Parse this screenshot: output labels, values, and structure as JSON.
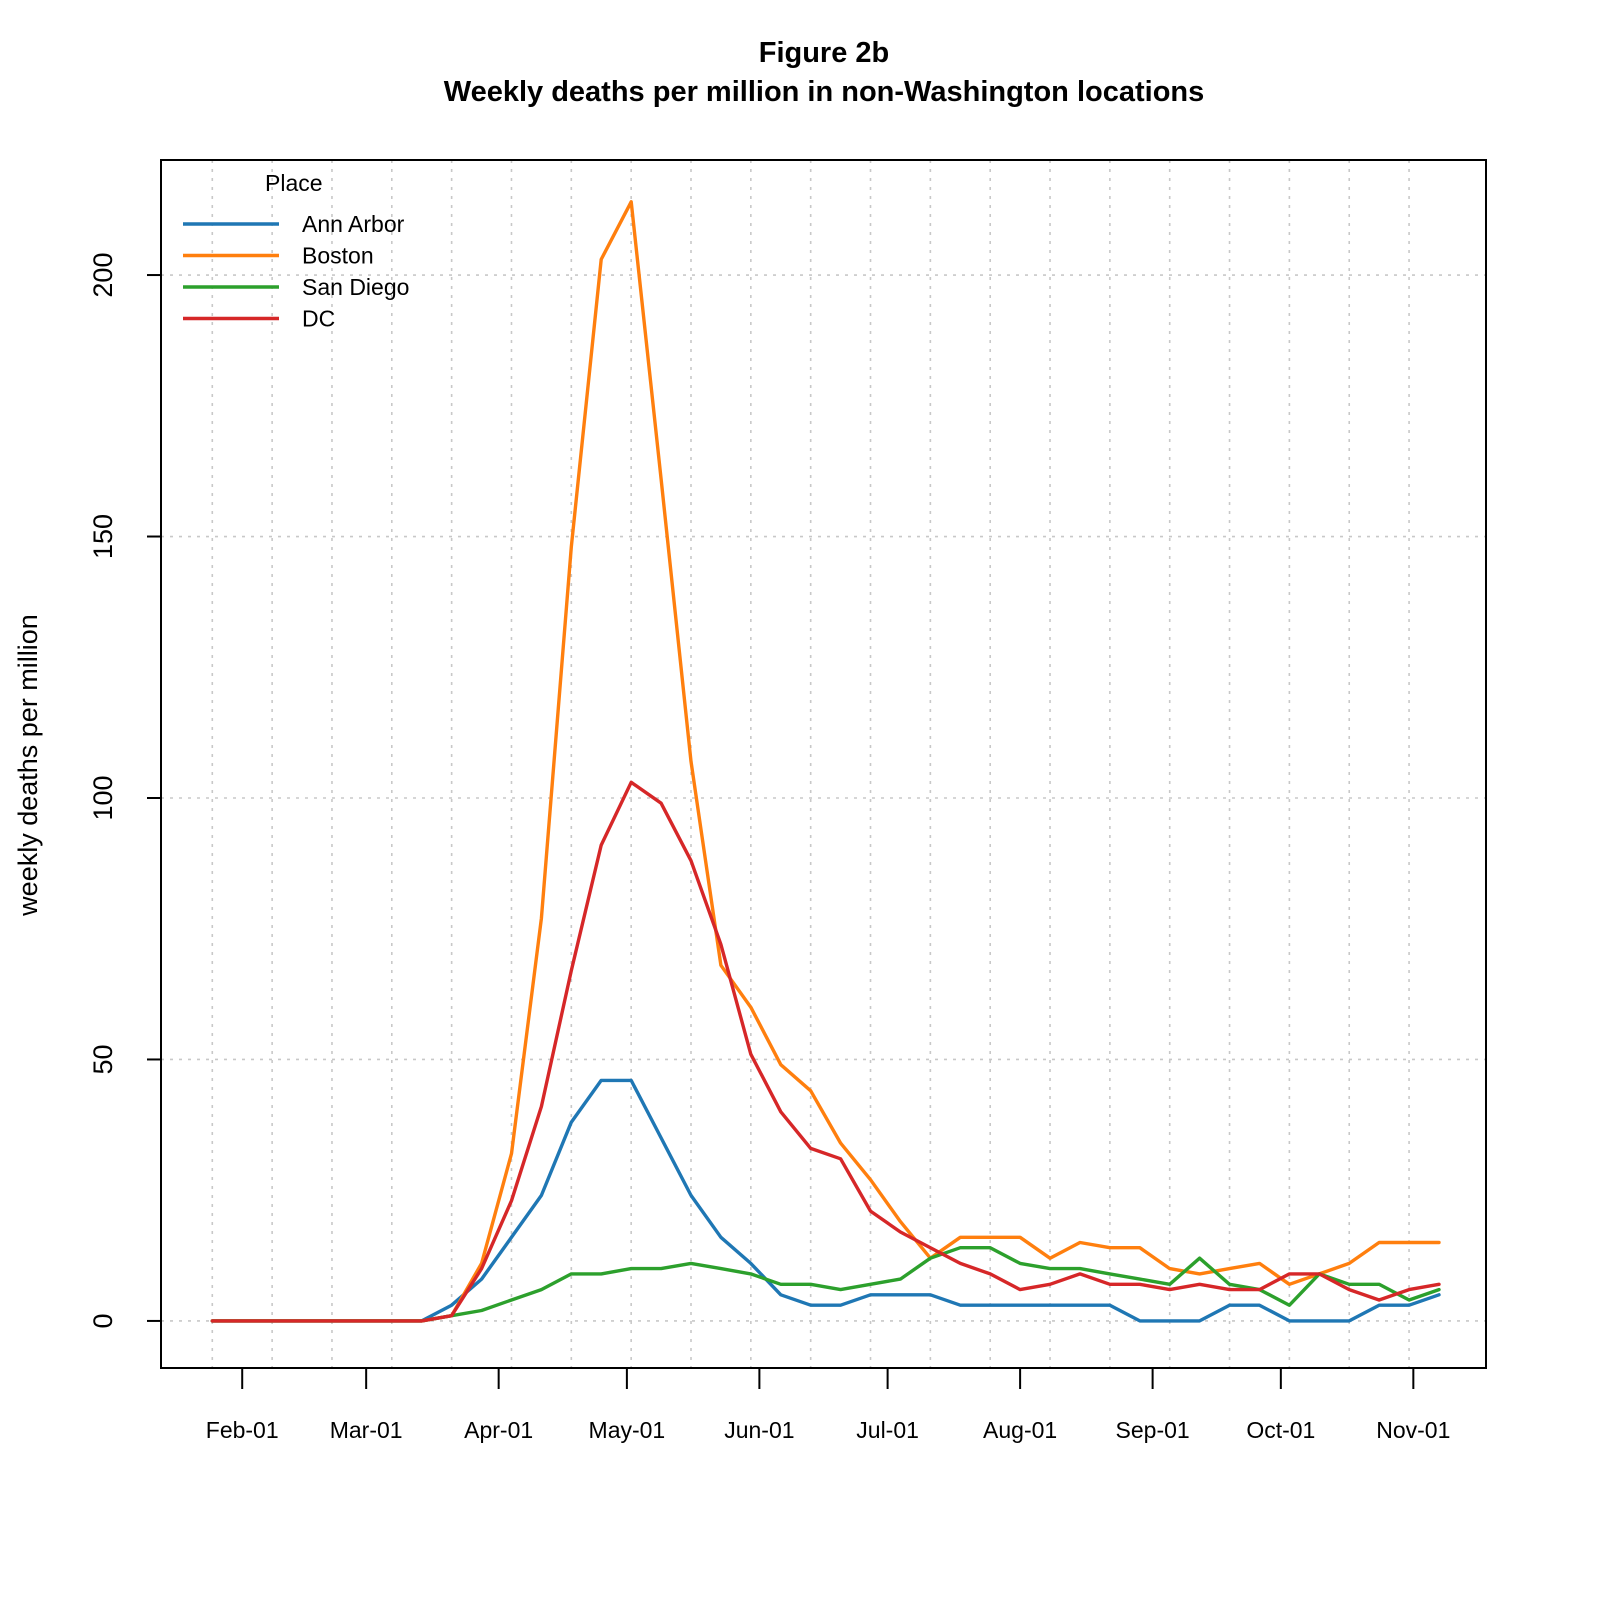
{
  "chart_data": {
    "type": "line",
    "title": "Figure 2b",
    "subtitle": "Weekly deaths per million in non-Washington locations",
    "xlabel": "",
    "ylabel": "weekly deaths per million",
    "legend_title": "Place",
    "legend_position": "top-left",
    "grid": true,
    "ylim": [
      -9,
      222
    ],
    "yticks": [
      0,
      50,
      100,
      150,
      200
    ],
    "xlim": [
      "2020-01-13",
      "2020-11-18"
    ],
    "xticks": [
      {
        "date": "2020-02-01",
        "label": "Feb-01"
      },
      {
        "date": "2020-03-01",
        "label": "Mar-01"
      },
      {
        "date": "2020-04-01",
        "label": "Apr-01"
      },
      {
        "date": "2020-05-01",
        "label": "May-01"
      },
      {
        "date": "2020-06-01",
        "label": "Jun-01"
      },
      {
        "date": "2020-07-01",
        "label": "Jul-01"
      },
      {
        "date": "2020-08-01",
        "label": "Aug-01"
      },
      {
        "date": "2020-09-01",
        "label": "Sep-01"
      },
      {
        "date": "2020-10-01",
        "label": "Oct-01"
      },
      {
        "date": "2020-11-01",
        "label": "Nov-01"
      }
    ],
    "x": [
      "2020-01-25",
      "2020-02-01",
      "2020-02-08",
      "2020-02-15",
      "2020-02-22",
      "2020-02-29",
      "2020-03-07",
      "2020-03-14",
      "2020-03-21",
      "2020-03-28",
      "2020-04-04",
      "2020-04-11",
      "2020-04-18",
      "2020-04-25",
      "2020-05-02",
      "2020-05-09",
      "2020-05-16",
      "2020-05-23",
      "2020-05-30",
      "2020-06-06",
      "2020-06-13",
      "2020-06-20",
      "2020-06-27",
      "2020-07-04",
      "2020-07-11",
      "2020-07-18",
      "2020-07-25",
      "2020-08-01",
      "2020-08-08",
      "2020-08-15",
      "2020-08-22",
      "2020-08-29",
      "2020-09-05",
      "2020-09-12",
      "2020-09-19",
      "2020-09-26",
      "2020-10-03",
      "2020-10-10",
      "2020-10-17",
      "2020-10-24",
      "2020-10-31",
      "2020-11-07"
    ],
    "series": [
      {
        "name": "Ann Arbor",
        "color": "#1f77b4",
        "values": [
          0,
          0,
          0,
          0,
          0,
          0,
          0,
          0,
          3,
          8,
          16,
          24,
          38,
          46,
          46,
          35,
          24,
          16,
          11,
          5,
          3,
          3,
          5,
          5,
          5,
          3,
          3,
          3,
          3,
          3,
          3,
          0,
          0,
          0,
          3,
          3,
          0,
          0,
          0,
          3,
          3,
          5
        ]
      },
      {
        "name": "Boston",
        "color": "#ff7f0e",
        "values": [
          0,
          0,
          0,
          0,
          0,
          0,
          0,
          0,
          1,
          11,
          32,
          77,
          148,
          203,
          214,
          161,
          107,
          68,
          60,
          49,
          44,
          34,
          27,
          19,
          12,
          16,
          16,
          16,
          12,
          15,
          14,
          14,
          10,
          9,
          10,
          11,
          7,
          9,
          11,
          15,
          15,
          15
        ]
      },
      {
        "name": "San Diego",
        "color": "#2ca02c",
        "values": [
          0,
          0,
          0,
          0,
          0,
          0,
          0,
          0,
          1,
          2,
          4,
          6,
          9,
          9,
          10,
          10,
          11,
          10,
          9,
          7,
          7,
          6,
          7,
          8,
          12,
          14,
          14,
          11,
          10,
          10,
          9,
          8,
          7,
          12,
          7,
          6,
          3,
          9,
          7,
          7,
          4,
          6
        ]
      },
      {
        "name": "DC",
        "color": "#d62728",
        "values": [
          0,
          0,
          0,
          0,
          0,
          0,
          0,
          0,
          1,
          10,
          23,
          41,
          67,
          91,
          103,
          99,
          88,
          72,
          51,
          40,
          33,
          31,
          21,
          17,
          14,
          11,
          9,
          6,
          7,
          9,
          7,
          7,
          6,
          7,
          6,
          6,
          9,
          9,
          6,
          4,
          6,
          7
        ]
      }
    ]
  }
}
